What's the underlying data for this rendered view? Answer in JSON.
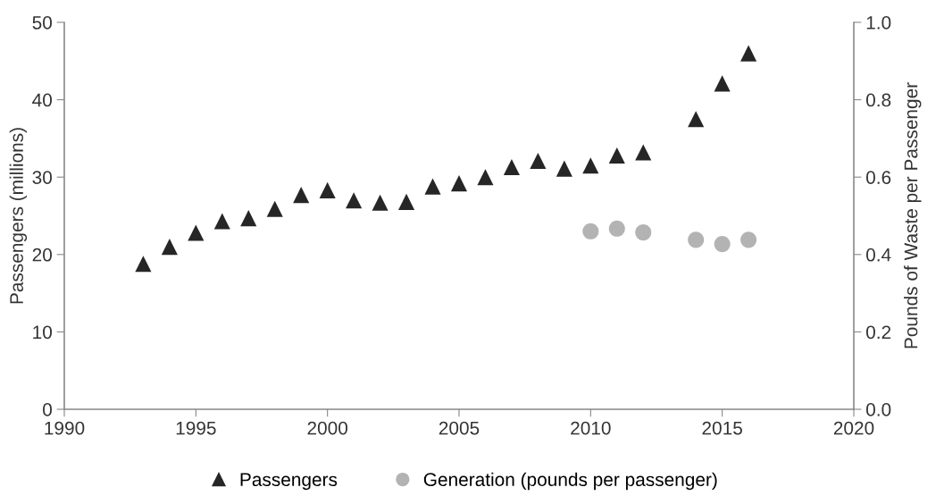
{
  "chart_data": {
    "type": "scatter",
    "ylabel": "Passengers (millions)",
    "y2label": "Pounds of Waste per Passenger",
    "xlim": [
      1990,
      2020
    ],
    "xticks": [
      1990,
      1995,
      2000,
      2005,
      2010,
      2015,
      2020
    ],
    "ylim": [
      0,
      50
    ],
    "yticks": [
      0,
      10,
      20,
      30,
      40,
      50
    ],
    "y2lim": [
      0,
      1
    ],
    "y2ticks": [
      {
        "value": 0,
        "label": "0.0"
      },
      {
        "value": 0.2,
        "label": "0.2"
      },
      {
        "value": 0.4,
        "label": "0.4"
      },
      {
        "value": 0.6,
        "label": "0.6"
      },
      {
        "value": 0.8,
        "label": "0.8"
      },
      {
        "value": 1,
        "label": "1.0"
      }
    ],
    "grid": false,
    "legend": "bottom",
    "series": [
      {
        "name": "Passengers",
        "color": "#262626",
        "marker": "triangle",
        "x": [
          1993,
          1994,
          1995,
          1996,
          1997,
          1998,
          1999,
          2000,
          2001,
          2002,
          2003,
          2004,
          2005,
          2006,
          2007,
          2008,
          2009,
          2010,
          2011,
          2012,
          2014,
          2015,
          2016
        ],
        "values": [
          18.8,
          21,
          22.8,
          24.3,
          24.7,
          25.9,
          27.7,
          28.3,
          27,
          26.7,
          26.8,
          28.8,
          29.2,
          30,
          31.3,
          32.1,
          31.1,
          31.5,
          32.8,
          33.2,
          37.5,
          42.1,
          46
        ]
      },
      {
        "name": "Generation (pounds per passenger)",
        "color": "#b3b3b3",
        "marker": "circle",
        "axis": "y2",
        "x": [
          2010,
          2011,
          2012,
          2014,
          2015,
          2016
        ],
        "values": [
          0.46,
          0.467,
          0.457,
          0.438,
          0.427,
          0.438
        ]
      }
    ]
  }
}
